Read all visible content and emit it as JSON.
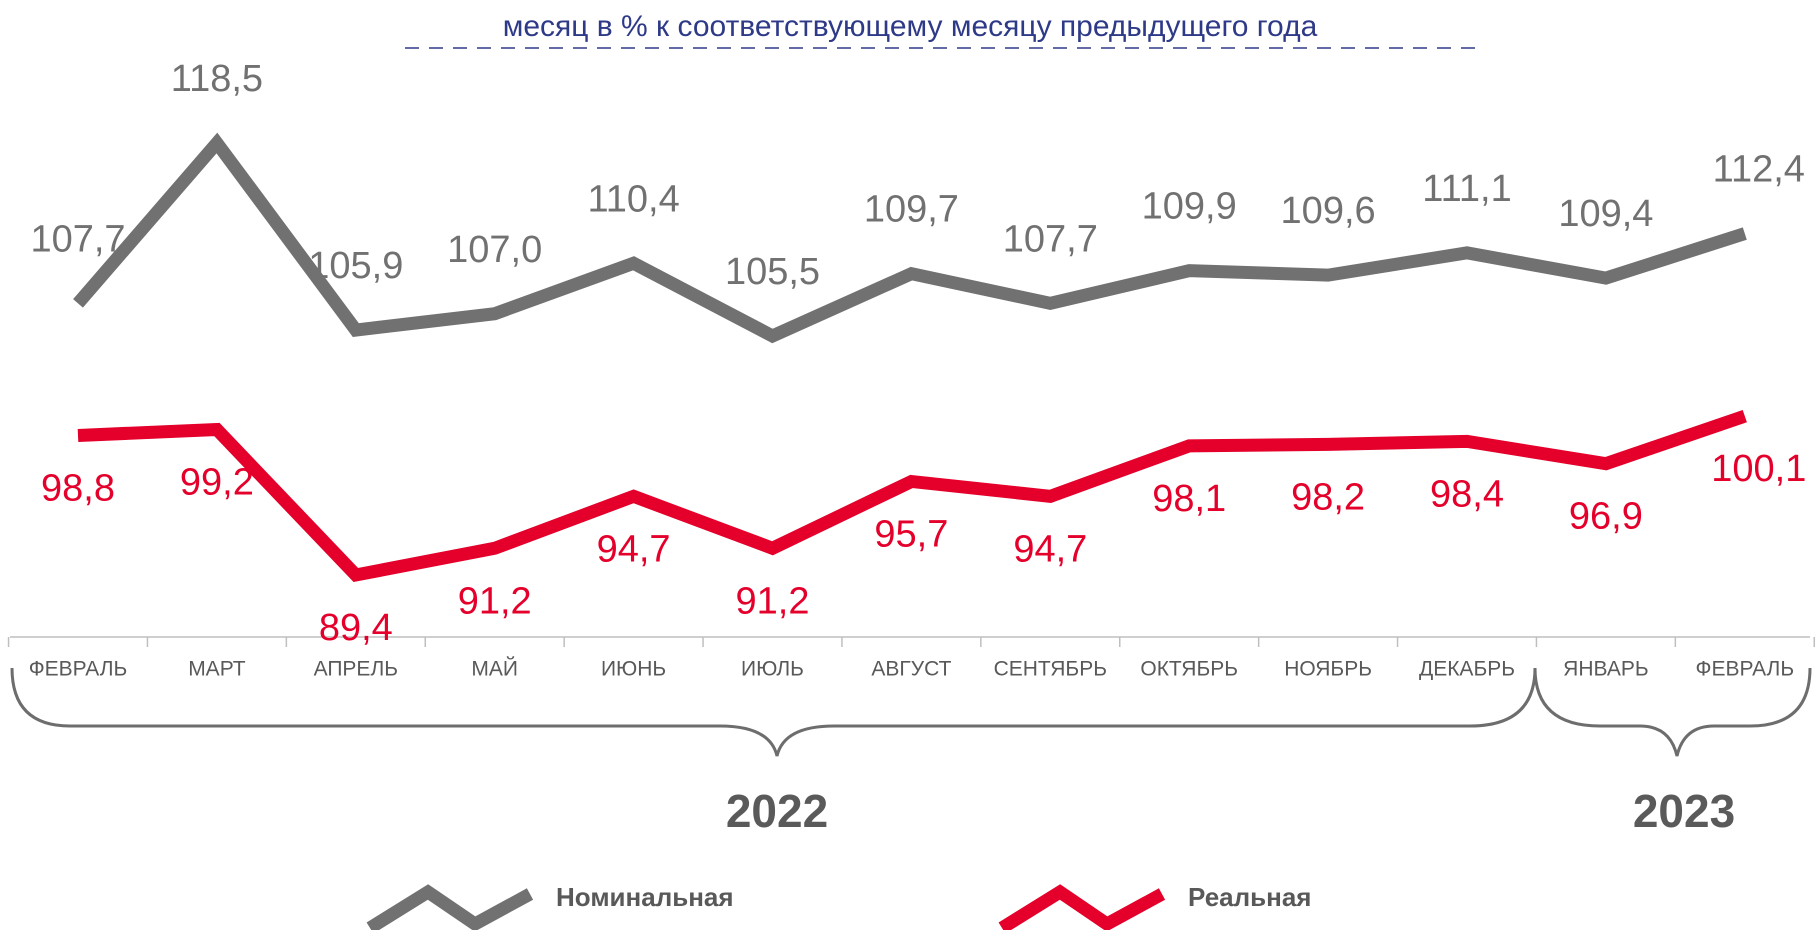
{
  "chart_data": {
    "type": "line",
    "title": "месяц в % к соответствующему месяцу предыдущего года",
    "categories": [
      "ФЕВРАЛЬ",
      "МАРТ",
      "АПРЕЛЬ",
      "МАЙ",
      "ИЮНЬ",
      "ИЮЛЬ",
      "АВГУСТ",
      "СЕНТЯБРЬ",
      "ОКТЯБРЬ",
      "НОЯБРЬ",
      "ДЕКАБРЬ",
      "ЯНВАРЬ",
      "ФЕВРАЛЬ"
    ],
    "series": [
      {
        "name": "Номинальная",
        "color": "#717171",
        "values": [
          107.7,
          118.5,
          105.9,
          107.0,
          110.4,
          105.5,
          109.7,
          107.7,
          109.9,
          109.6,
          111.1,
          109.4,
          112.4
        ],
        "value_labels": [
          "107,7",
          "118,5",
          "105,9",
          "107,0",
          "110,4",
          "105,5",
          "109,7",
          "107,7",
          "109,9",
          "109,6",
          "111,1",
          "109,4",
          "112,4"
        ]
      },
      {
        "name": "Реальная",
        "color": "#e4002b",
        "values": [
          98.8,
          99.2,
          89.4,
          91.2,
          94.7,
          91.2,
          95.7,
          94.7,
          98.1,
          98.2,
          98.4,
          96.9,
          100.1
        ],
        "value_labels": [
          "98,8",
          "99,2",
          "89,4",
          "91,2",
          "94,7",
          "91,2",
          "95,7",
          "94,7",
          "98,1",
          "98,2",
          "98,4",
          "96,9",
          "100,1"
        ]
      }
    ],
    "annotations": [
      "2022",
      "2023"
    ]
  }
}
